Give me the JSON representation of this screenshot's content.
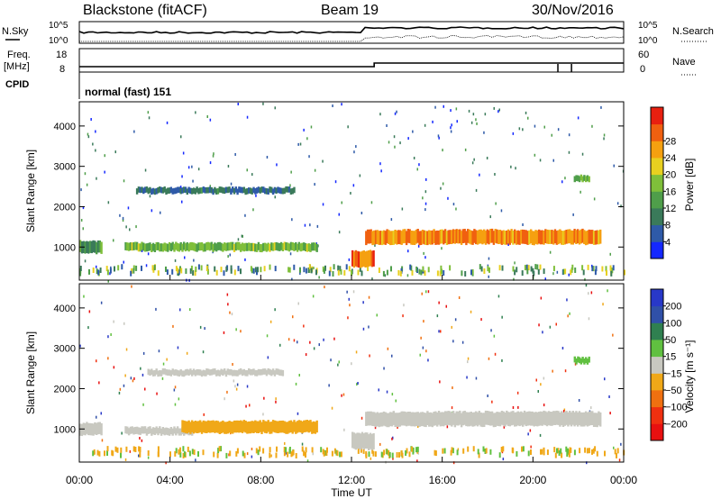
{
  "header": {
    "radar": "Blackstone (fitACF)",
    "beam": "Beam 19",
    "date": "30/Nov/2016"
  },
  "top_panel": {
    "left_label_1": "N.Sky",
    "left_label_2": "Freq.",
    "left_label_3": "[MHz]",
    "left_label_4": "CPID",
    "right_label_1": "N.Search",
    "right_label_2": "Nave",
    "noise_ticks_left": [
      "10^5",
      "10^0"
    ],
    "noise_ticks_right": [
      "10^5",
      "10^0"
    ],
    "freq_ticks": [
      "18",
      "8"
    ],
    "nave_ticks": [
      "60",
      "0"
    ],
    "cpid_text": "normal (fast) 151"
  },
  "x_axis": {
    "label": "Time UT",
    "ticks": [
      "00:00",
      "04:00",
      "08:00",
      "12:00",
      "16:00",
      "20:00",
      "00:00"
    ]
  },
  "chart_data": [
    {
      "type": "heatmap",
      "name": "power",
      "ylabel": "Slant Range [km]",
      "yticks": [
        1000,
        2000,
        3000,
        4000
      ],
      "ylim": [
        180,
        4600
      ],
      "xlim_hours": [
        0,
        24
      ],
      "colorbar": {
        "label": "Power [dB]",
        "ticks": [
          "4",
          "8",
          "12",
          "16",
          "20",
          "24",
          "28"
        ],
        "colors": [
          "#1428ff",
          "#2e5aa8",
          "#3a7a5a",
          "#4f9e4a",
          "#7fbf3a",
          "#e8d020",
          "#f5a010",
          "#f06010",
          "#e82010"
        ]
      },
      "regions": [
        {
          "t0": 0.0,
          "t1": 1.0,
          "r": 1000,
          "h": 300,
          "level": 0.35
        },
        {
          "t0": 2.0,
          "t1": 10.5,
          "r": 1000,
          "h": 200,
          "level": 0.45
        },
        {
          "t0": 2.5,
          "t1": 9.5,
          "r": 2400,
          "h": 150,
          "level": 0.2
        },
        {
          "t0": 12.6,
          "t1": 23.0,
          "r": 1250,
          "h": 350,
          "level": 0.8
        },
        {
          "t0": 12.0,
          "t1": 13.0,
          "r": 700,
          "h": 400,
          "level": 0.85
        },
        {
          "t0": 21.8,
          "t1": 22.5,
          "r": 2700,
          "h": 150,
          "level": 0.4
        }
      ]
    },
    {
      "type": "heatmap",
      "name": "velocity",
      "ylabel": "Slant Range [km]",
      "yticks": [
        1000,
        2000,
        3000,
        4000
      ],
      "ylim": [
        180,
        4600
      ],
      "xlim_hours": [
        0,
        24
      ],
      "colorbar": {
        "label": "Velocity [m s⁻¹]",
        "ticks": [
          "200",
          "100",
          "50",
          "15",
          "−15",
          "−50",
          "−100",
          "−200"
        ],
        "colors": [
          "#2838c8",
          "#3050a8",
          "#2f8050",
          "#60c040",
          "#c8c8c0",
          "#f0a818",
          "#f07010",
          "#f03010",
          "#e81010"
        ]
      },
      "regions": [
        {
          "t0": 0.0,
          "t1": 1.0,
          "r": 1000,
          "h": 300,
          "v": "gray"
        },
        {
          "t0": 2.0,
          "t1": 5.0,
          "r": 950,
          "h": 180,
          "v": "gray"
        },
        {
          "t0": 4.5,
          "t1": 10.5,
          "r": 1050,
          "h": 300,
          "v": "orange"
        },
        {
          "t0": 3.0,
          "t1": 9.0,
          "r": 2400,
          "h": 150,
          "v": "gray"
        },
        {
          "t0": 12.6,
          "t1": 23.0,
          "r": 1250,
          "h": 350,
          "v": "gray"
        },
        {
          "t0": 12.0,
          "t1": 13.0,
          "r": 700,
          "h": 400,
          "v": "gray"
        },
        {
          "t0": 21.8,
          "t1": 22.5,
          "r": 2700,
          "h": 150,
          "v": "green"
        }
      ]
    }
  ]
}
